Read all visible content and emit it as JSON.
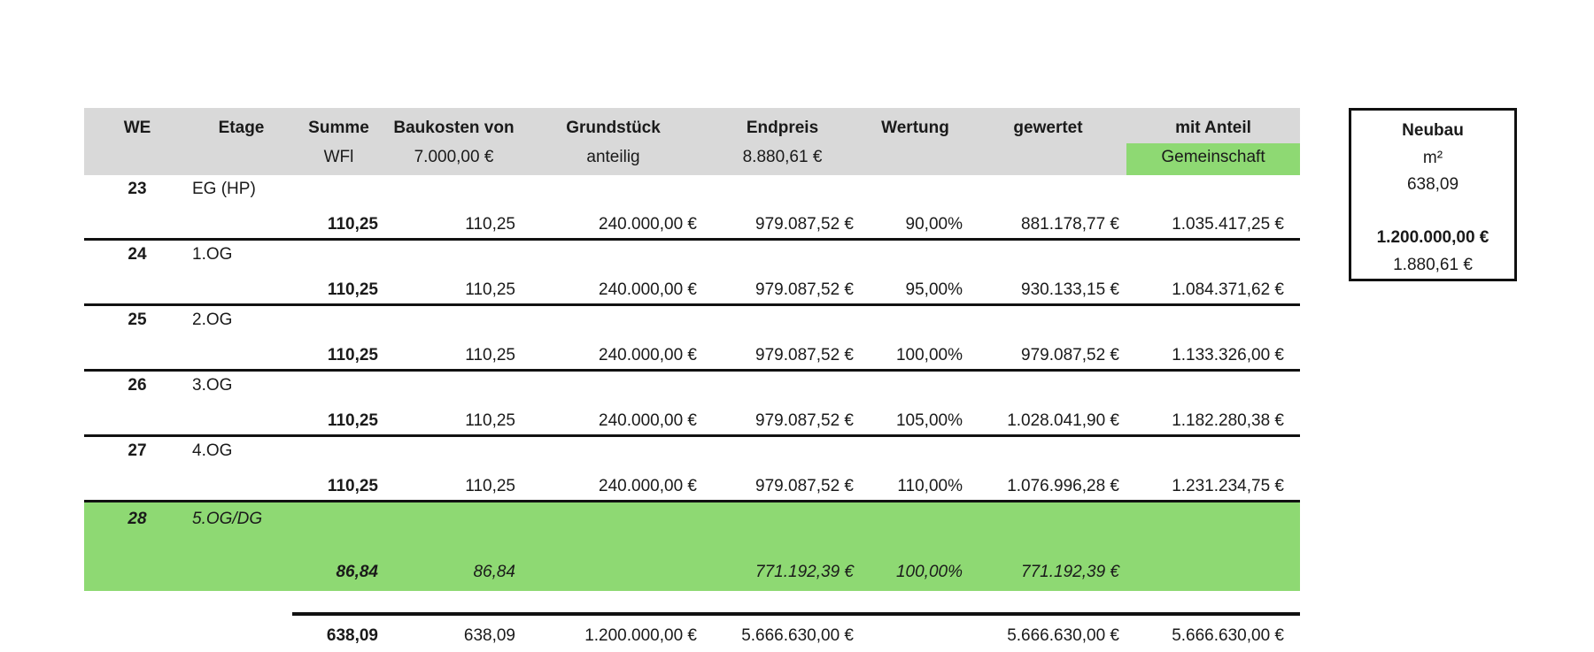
{
  "colors": {
    "header_bg": "#d9d9d9",
    "highlight_green": "#8ed973",
    "line_black": "#111111"
  },
  "table": {
    "columns": [
      "WE",
      "Etage",
      "Summe",
      "Baukosten von",
      "Grundstück",
      "Endpreis",
      "Wertung",
      "gewertet",
      "mit Anteil"
    ],
    "subheader": {
      "summe": "WFl",
      "baukosten": "7.000,00 €",
      "grundstueck": "anteilig",
      "endpreis": "8.880,61 €",
      "mit_anteil": "Gemeinschaft"
    },
    "units": [
      {
        "we": "23",
        "etage": "EG (HP)",
        "summe": "110,25",
        "baukosten": "110,25",
        "grundstueck": "240.000,00 €",
        "endpreis": "979.087,52 €",
        "wertung": "90,00%",
        "gewertet": "881.178,77 €",
        "mit_anteil": "1.035.417,25 €"
      },
      {
        "we": "24",
        "etage": "1.OG",
        "summe": "110,25",
        "baukosten": "110,25",
        "grundstueck": "240.000,00 €",
        "endpreis": "979.087,52 €",
        "wertung": "95,00%",
        "gewertet": "930.133,15 €",
        "mit_anteil": "1.084.371,62 €"
      },
      {
        "we": "25",
        "etage": "2.OG",
        "summe": "110,25",
        "baukosten": "110,25",
        "grundstueck": "240.000,00 €",
        "endpreis": "979.087,52 €",
        "wertung": "100,00%",
        "gewertet": "979.087,52 €",
        "mit_anteil": "1.133.326,00 €"
      },
      {
        "we": "26",
        "etage": "3.OG",
        "summe": "110,25",
        "baukosten": "110,25",
        "grundstueck": "240.000,00 €",
        "endpreis": "979.087,52 €",
        "wertung": "105,00%",
        "gewertet": "1.028.041,90 €",
        "mit_anteil": "1.182.280,38 €"
      },
      {
        "we": "27",
        "etage": "4.OG",
        "summe": "110,25",
        "baukosten": "110,25",
        "grundstueck": "240.000,00 €",
        "endpreis": "979.087,52 €",
        "wertung": "110,00%",
        "gewertet": "1.076.996,28 €",
        "mit_anteil": "1.231.234,75 €"
      },
      {
        "we": "28",
        "etage": "5.OG/DG",
        "summe": "86,84",
        "baukosten": "86,84",
        "grundstueck": "",
        "endpreis": "771.192,39 €",
        "wertung": "100,00%",
        "gewertet": "771.192,39 €",
        "mit_anteil": ""
      }
    ],
    "totals": {
      "summe": "638,09",
      "baukosten": "638,09",
      "grundstueck": "1.200.000,00 €",
      "endpreis": "5.666.630,00 €",
      "gewertet": "5.666.630,00 €",
      "mit_anteil": "5.666.630,00 €"
    }
  },
  "side_box": {
    "title": "Neubau",
    "unit_label": "m²",
    "area": "638,09",
    "total_price": "1.200.000,00 €",
    "price_per_sqm": "1.880,61 €"
  }
}
